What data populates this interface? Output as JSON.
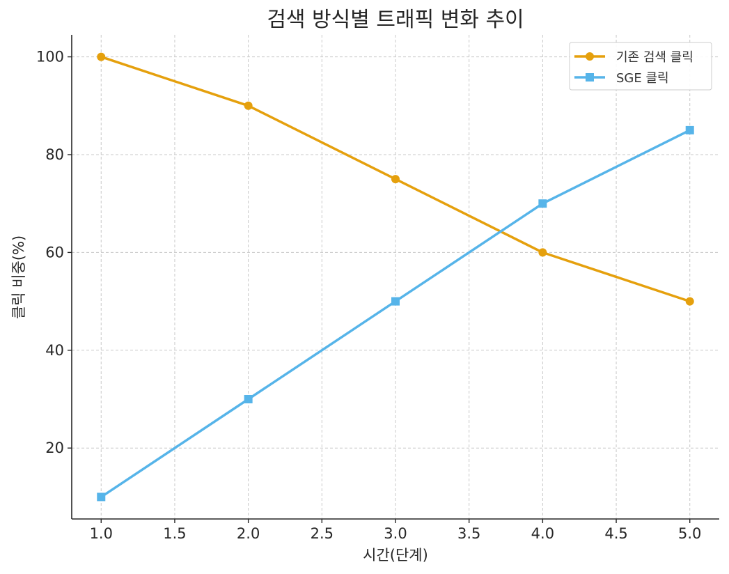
{
  "chart_data": {
    "type": "line",
    "title": "검색 방식별 트래픽 변화 추이",
    "xlabel": "시간(단계)",
    "ylabel": "클릭 비중(%)",
    "x": [
      1.0,
      2.0,
      3.0,
      4.0,
      5.0
    ],
    "xlim": [
      0.8,
      5.2
    ],
    "ylim": [
      5.5,
      104.5
    ],
    "xticks": [
      "1.0",
      "1.5",
      "2.0",
      "2.5",
      "3.0",
      "3.5",
      "4.0",
      "4.5",
      "5.0"
    ],
    "yticks": [
      "20",
      "40",
      "60",
      "80",
      "100"
    ],
    "grid": true,
    "legend_position": "top-right",
    "series": [
      {
        "name": "기존 검색 클릭",
        "values": [
          100,
          90,
          75,
          60,
          50
        ],
        "color": "#E5A00D",
        "marker": "circle"
      },
      {
        "name": "SGE 클릭",
        "values": [
          10,
          30,
          50,
          70,
          85
        ],
        "color": "#56B4E9",
        "marker": "square"
      }
    ]
  }
}
